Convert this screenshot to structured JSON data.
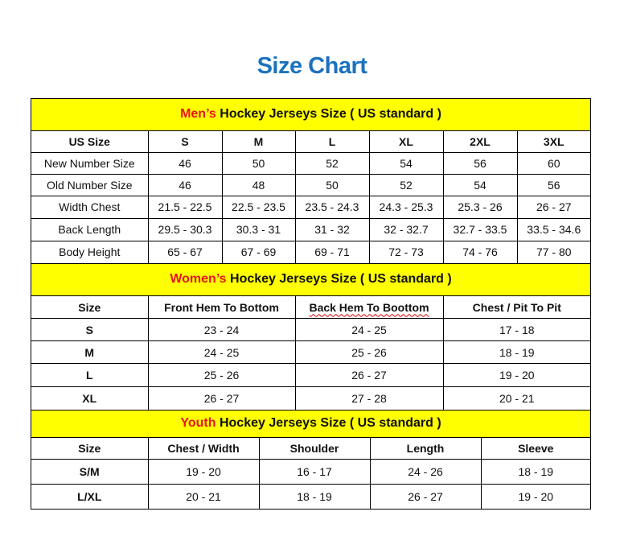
{
  "title": "Size Chart",
  "colors": {
    "title": "#1a72bf",
    "section_bg": "#ffff00",
    "highlight": "#e8141c"
  },
  "men": {
    "heading_highlight": "Men’s",
    "heading_rest": " Hockey Jerseys Size ( US standard )",
    "headers": [
      "US Size",
      "S",
      "M",
      "L",
      "XL",
      "2XL",
      "3XL"
    ],
    "rows": [
      [
        "New Number Size",
        "46",
        "50",
        "52",
        "54",
        "56",
        "60"
      ],
      [
        "Old Number Size",
        "46",
        "48",
        "50",
        "52",
        "54",
        "56"
      ],
      [
        "Width Chest",
        "21.5 - 22.5",
        "22.5 - 23.5",
        "23.5 - 24.3",
        "24.3 - 25.3",
        "25.3 - 26",
        "26 - 27"
      ],
      [
        "Back Length",
        "29.5 - 30.3",
        "30.3 - 31",
        "31 - 32",
        "32 - 32.7",
        "32.7 - 33.5",
        "33.5 - 34.6"
      ],
      [
        "Body Height",
        "65 - 67",
        "67 - 69",
        "69 - 71",
        "72 - 73",
        "74 - 76",
        "77 - 80"
      ]
    ]
  },
  "women": {
    "heading_highlight": "Women’s",
    "heading_rest": " Hockey Jerseys Size ( US standard )",
    "headers": [
      "Size",
      "Front Hem To Bottom",
      "Back Hem To Boottom",
      "Chest / Pit To Pit"
    ],
    "rows": [
      [
        "S",
        "23 - 24",
        "24 - 25",
        "17 - 18"
      ],
      [
        "M",
        "24 - 25",
        "25 - 26",
        "18 - 19"
      ],
      [
        "L",
        "25 - 26",
        "26 - 27",
        "19 - 20"
      ],
      [
        "XL",
        "26 - 27",
        "27 - 28",
        "20 - 21"
      ]
    ]
  },
  "youth": {
    "heading_highlight": "Youth",
    "heading_rest": " Hockey Jerseys Size ( US standard )",
    "headers": [
      "Size",
      "Chest / Width",
      "Shoulder",
      "Length",
      "Sleeve"
    ],
    "rows": [
      [
        "S/M",
        "19 - 20",
        "16 - 17",
        "24 - 26",
        "18 - 19"
      ],
      [
        "L/XL",
        "20 - 21",
        "18 - 19",
        "26 - 27",
        "19 - 20"
      ]
    ]
  }
}
